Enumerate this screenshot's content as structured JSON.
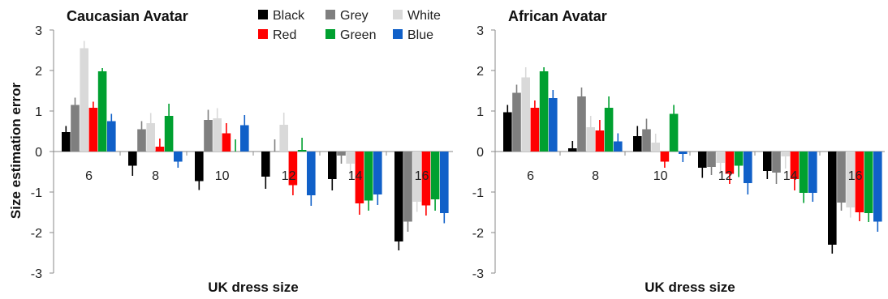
{
  "chart_data": {
    "type": "bar",
    "ylabel": "Size estimation error",
    "xlabel": "UK dress size",
    "ylim": [
      -3,
      3
    ],
    "yticks": [
      "3",
      "2",
      "1",
      "0",
      "-1",
      "-2",
      "-3"
    ],
    "legend_placement": "top-center",
    "legend": [
      {
        "name": "Black",
        "color": "#000000"
      },
      {
        "name": "Grey",
        "color": "#7f7f7f"
      },
      {
        "name": "White",
        "color": "#d9d9d9"
      },
      {
        "name": "Red",
        "color": "#ff0000"
      },
      {
        "name": "Green",
        "color": "#00a030"
      },
      {
        "name": "Blue",
        "color": "#1060c8"
      }
    ],
    "categories": [
      "6",
      "8",
      "10",
      "12",
      "14",
      "16"
    ],
    "panels": [
      {
        "title": "Caucasian Avatar",
        "series": [
          {
            "name": "Black",
            "values": [
              0.48,
              -0.35,
              -0.73,
              -0.62,
              -0.68,
              -2.22
            ],
            "errors": [
              0.15,
              0.25,
              0.22,
              0.3,
              0.28,
              0.22
            ]
          },
          {
            "name": "Grey",
            "values": [
              1.15,
              0.55,
              0.78,
              0.0,
              -0.1,
              -1.73
            ],
            "errors": [
              0.18,
              0.2,
              0.25,
              0.3,
              0.2,
              0.25
            ]
          },
          {
            "name": "White",
            "values": [
              2.55,
              0.7,
              0.82,
              0.66,
              -0.3,
              -1.24
            ],
            "errors": [
              0.18,
              0.25,
              0.25,
              0.3,
              0.35,
              0.25
            ]
          },
          {
            "name": "Red",
            "values": [
              1.08,
              0.12,
              0.45,
              -0.83,
              -1.28,
              -1.33
            ],
            "errors": [
              0.15,
              0.2,
              0.25,
              0.25,
              0.28,
              0.25
            ]
          },
          {
            "name": "Green",
            "values": [
              1.98,
              0.88,
              0.0,
              0.04,
              -1.21,
              -1.18
            ],
            "errors": [
              0.08,
              0.3,
              0.3,
              0.3,
              0.25,
              0.28
            ]
          },
          {
            "name": "Blue",
            "values": [
              0.75,
              -0.25,
              0.65,
              -1.08,
              -1.06,
              -1.52
            ],
            "errors": [
              0.18,
              0.15,
              0.25,
              0.26,
              0.26,
              0.25
            ]
          }
        ]
      },
      {
        "title": "African Avatar",
        "series": [
          {
            "name": "Black",
            "values": [
              0.97,
              0.08,
              0.38,
              -0.4,
              -0.48,
              -2.3
            ],
            "errors": [
              0.18,
              0.18,
              0.25,
              0.25,
              0.2,
              0.22
            ]
          },
          {
            "name": "Grey",
            "values": [
              1.45,
              1.36,
              0.55,
              -0.38,
              -0.52,
              -1.26
            ],
            "errors": [
              0.2,
              0.22,
              0.26,
              0.2,
              0.28,
              0.2
            ]
          },
          {
            "name": "White",
            "values": [
              1.83,
              0.6,
              0.22,
              -0.28,
              -0.12,
              -1.38
            ],
            "errors": [
              0.25,
              0.28,
              0.22,
              0.25,
              0.3,
              0.25
            ]
          },
          {
            "name": "Red",
            "values": [
              1.08,
              0.52,
              -0.25,
              -0.55,
              -0.68,
              -1.5
            ],
            "errors": [
              0.18,
              0.26,
              0.15,
              0.25,
              0.28,
              0.22
            ]
          },
          {
            "name": "Green",
            "values": [
              1.98,
              1.08,
              0.93,
              -0.35,
              -1.02,
              -1.52
            ],
            "errors": [
              0.1,
              0.28,
              0.22,
              0.28,
              0.25,
              0.22
            ]
          },
          {
            "name": "Blue",
            "values": [
              1.32,
              0.25,
              -0.06,
              -0.78,
              -1.02,
              -1.73
            ],
            "errors": [
              0.2,
              0.2,
              0.2,
              0.28,
              0.22,
              0.25
            ]
          }
        ]
      }
    ]
  }
}
